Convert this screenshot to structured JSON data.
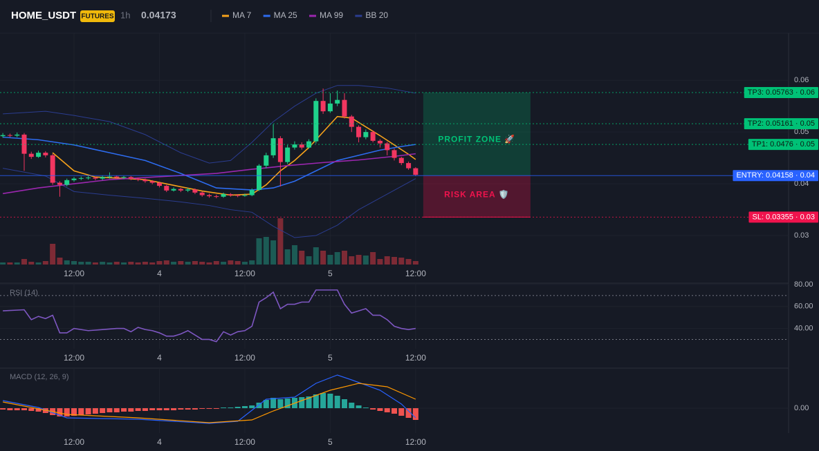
{
  "chart_data": [
    {
      "type": "candlestick",
      "title": "HOME_USDT",
      "badge": "FUTURES",
      "interval": "1h",
      "last_price": 0.04173,
      "last_price_color": "#1fd18b",
      "up_color": "#1fd18b",
      "down_color": "#f23660",
      "volume_up_color": "#1c5b55",
      "volume_down_color": "#7d2a35",
      "xlim": [
        -10.4,
        100.4
      ],
      "xticks": [
        {
          "value": 0,
          "label": "12:00"
        },
        {
          "value": 12,
          "label": "4"
        },
        {
          "value": 24,
          "label": "12:00"
        },
        {
          "value": 36,
          "label": "5"
        },
        {
          "value": 48,
          "label": "12:00"
        }
      ],
      "ylim": [
        0.0244,
        0.0691
      ],
      "yticks": [
        0.03,
        0.04,
        0.05,
        0.06
      ],
      "x": [
        -10,
        -9,
        -8,
        -7,
        -6,
        -5,
        -4,
        -3,
        -2,
        -1,
        0,
        1,
        2,
        3,
        4,
        5,
        6,
        7,
        8,
        9,
        10,
        11,
        12,
        13,
        14,
        15,
        16,
        17,
        18,
        19,
        20,
        21,
        22,
        23,
        24,
        25,
        26,
        27,
        28,
        29,
        30,
        31,
        32,
        33,
        34,
        35,
        36,
        37,
        38,
        39,
        40,
        41,
        42,
        43,
        44,
        45,
        46,
        47,
        48
      ],
      "open": [
        0.0492,
        0.0494,
        0.0493,
        0.0495,
        0.0458,
        0.0452,
        0.046,
        0.0455,
        0.0402,
        0.0398,
        0.0407,
        0.041,
        0.0411,
        0.0412,
        0.041,
        0.0413,
        0.0414,
        0.0412,
        0.0413,
        0.041,
        0.0408,
        0.0405,
        0.0402,
        0.0396,
        0.0387,
        0.039,
        0.0387,
        0.0389,
        0.0383,
        0.0378,
        0.0376,
        0.0375,
        0.038,
        0.0378,
        0.0377,
        0.0378,
        0.0388,
        0.0435,
        0.0455,
        0.0488,
        0.0442,
        0.047,
        0.0476,
        0.047,
        0.0482,
        0.056,
        0.054,
        0.0555,
        0.0562,
        0.053,
        0.051,
        0.049,
        0.05,
        0.0483,
        0.0478,
        0.0465,
        0.045,
        0.044,
        0.043
      ],
      "high": [
        0.0498,
        0.0497,
        0.0499,
        0.0498,
        0.0462,
        0.0464,
        0.0463,
        0.0458,
        0.0405,
        0.041,
        0.0413,
        0.0414,
        0.0415,
        0.0414,
        0.0416,
        0.0422,
        0.0416,
        0.0415,
        0.0415,
        0.0412,
        0.041,
        0.0407,
        0.0404,
        0.0398,
        0.0393,
        0.0392,
        0.0392,
        0.0391,
        0.0385,
        0.0381,
        0.0379,
        0.0383,
        0.0382,
        0.038,
        0.0381,
        0.0391,
        0.0438,
        0.046,
        0.0515,
        0.0492,
        0.0475,
        0.0482,
        0.048,
        0.0486,
        0.0565,
        0.0584,
        0.0575,
        0.058,
        0.0575,
        0.0533,
        0.0513,
        0.0505,
        0.0503,
        0.0486,
        0.0481,
        0.0468,
        0.0452,
        0.0443,
        0.0432
      ],
      "low": [
        0.0489,
        0.049,
        0.049,
        0.0425,
        0.0448,
        0.045,
        0.0451,
        0.0398,
        0.0375,
        0.0395,
        0.0404,
        0.0407,
        0.0408,
        0.0407,
        0.0407,
        0.041,
        0.0409,
        0.0409,
        0.0407,
        0.0405,
        0.0402,
        0.0399,
        0.0393,
        0.0384,
        0.0385,
        0.0384,
        0.0384,
        0.038,
        0.0375,
        0.0373,
        0.0372,
        0.0373,
        0.0375,
        0.0374,
        0.0375,
        0.0376,
        0.0386,
        0.043,
        0.045,
        0.0395,
        0.0438,
        0.0466,
        0.0466,
        0.0468,
        0.0478,
        0.0535,
        0.0537,
        0.055,
        0.0526,
        0.05,
        0.048,
        0.0486,
        0.048,
        0.047,
        0.0455,
        0.0445,
        0.0436,
        0.0427,
        0.0415
      ],
      "close": [
        0.0494,
        0.0493,
        0.0495,
        0.0458,
        0.0452,
        0.046,
        0.0455,
        0.0402,
        0.0398,
        0.0407,
        0.041,
        0.0411,
        0.0412,
        0.041,
        0.0413,
        0.0414,
        0.0412,
        0.0413,
        0.041,
        0.0408,
        0.0405,
        0.0402,
        0.0396,
        0.0387,
        0.039,
        0.0387,
        0.0389,
        0.0383,
        0.0378,
        0.0376,
        0.0375,
        0.038,
        0.0378,
        0.0377,
        0.0378,
        0.0388,
        0.0435,
        0.0455,
        0.0488,
        0.0442,
        0.047,
        0.0476,
        0.047,
        0.0482,
        0.056,
        0.054,
        0.0555,
        0.0562,
        0.053,
        0.051,
        0.049,
        0.05,
        0.0483,
        0.0478,
        0.0465,
        0.045,
        0.044,
        0.043,
        0.04173
      ],
      "volume": [
        3,
        3,
        3,
        8,
        4,
        3,
        5,
        30,
        10,
        6,
        5,
        4,
        4,
        3,
        4,
        3,
        4,
        3,
        4,
        3,
        4,
        3,
        5,
        6,
        4,
        5,
        4,
        5,
        4,
        3,
        5,
        4,
        6,
        5,
        4,
        6,
        38,
        40,
        35,
        67,
        22,
        28,
        20,
        12,
        25,
        20,
        14,
        18,
        20,
        12,
        14,
        13,
        18,
        8,
        12,
        11,
        10,
        8,
        5
      ],
      "series": [
        {
          "name": "MA 7",
          "color": "#f7a21b",
          "x": [
            -3,
            0,
            3,
            6,
            10,
            14,
            18,
            22,
            25,
            27,
            29,
            31,
            33,
            35,
            37,
            39,
            41,
            43,
            45,
            47,
            48
          ],
          "values": [
            0.046,
            0.0425,
            0.0413,
            0.0411,
            0.0408,
            0.0397,
            0.0386,
            0.0378,
            0.038,
            0.0398,
            0.0425,
            0.0445,
            0.047,
            0.05,
            0.053,
            0.0527,
            0.051,
            0.0493,
            0.0475,
            0.0457,
            0.0447
          ]
        },
        {
          "name": "MA 25",
          "color": "#2d6cf0",
          "x": [
            -10,
            -5,
            0,
            5,
            10,
            15,
            20,
            25,
            28,
            31,
            34,
            37,
            40,
            43,
            46,
            48
          ],
          "values": [
            0.049,
            0.0485,
            0.0475,
            0.046,
            0.0445,
            0.042,
            0.0392,
            0.0388,
            0.0392,
            0.0405,
            0.0425,
            0.0445,
            0.0455,
            0.0465,
            0.0472,
            0.0476
          ]
        },
        {
          "name": "MA 99",
          "color": "#9c27b0",
          "x": [
            -10,
            -5,
            0,
            5,
            10,
            15,
            20,
            25,
            30,
            35,
            40,
            45,
            48
          ],
          "values": [
            0.0381,
            0.0392,
            0.04,
            0.0408,
            0.0412,
            0.0416,
            0.042,
            0.0428,
            0.0435,
            0.0441,
            0.0446,
            0.0453,
            0.0458
          ]
        }
      ],
      "bands": [
        {
          "name": "BB 20",
          "color": "#2b3d91",
          "x": [
            -10,
            -4,
            0,
            5,
            10,
            15,
            19,
            22,
            25,
            28,
            31,
            34,
            37,
            40,
            44,
            48
          ],
          "upper": [
            0.0535,
            0.054,
            0.0532,
            0.052,
            0.0495,
            0.046,
            0.044,
            0.0445,
            0.048,
            0.052,
            0.055,
            0.0575,
            0.059,
            0.059,
            0.0585,
            0.0575
          ],
          "lower": [
            0.043,
            0.0415,
            0.0385,
            0.0378,
            0.0372,
            0.0365,
            0.0358,
            0.035,
            0.0345,
            0.0318,
            0.0296,
            0.03,
            0.032,
            0.035,
            0.038,
            0.041
          ]
        }
      ],
      "levels": {
        "tp": [
          {
            "value": 0.05763,
            "value_label": "TP3: 0.05763 · 0.06",
            "color": "#00c176"
          },
          {
            "value": 0.05161,
            "value_label": "TP2: 0.05161 · 0.05",
            "color": "#00c176"
          },
          {
            "value": 0.0476,
            "value_label": "TP1: 0.0476 · 0.05",
            "color": "#00c176"
          }
        ],
        "entry": {
          "value": 0.04158,
          "value_label": "ENTRY: 0.04158 · 0.04",
          "color": "#2962ff"
        },
        "sl": {
          "value": 0.03355,
          "value_label": "SL: 0.03355 · 0.03",
          "color": "#f0134d"
        }
      },
      "profit_zone": {
        "label": "PROFIT ZONE 🚀",
        "color": "#00c176"
      },
      "risk_zone": {
        "label": "RISK AREA 🛡️",
        "color": "#f0134d"
      }
    },
    {
      "type": "line",
      "title": "RSI (14)",
      "color": "#7e57c2",
      "xlim": [
        -10.4,
        100.4
      ],
      "xticks": [
        {
          "value": 0,
          "label": "12:00"
        },
        {
          "value": 12,
          "label": "4"
        },
        {
          "value": 24,
          "label": "12:00"
        },
        {
          "value": 36,
          "label": "5"
        },
        {
          "value": 48,
          "label": "12:00"
        }
      ],
      "ylim": [
        21.5,
        81.2
      ],
      "yticks": [
        {
          "value": 80,
          "label": "80.00"
        },
        {
          "value": 60,
          "label": "60.00"
        },
        {
          "value": 40,
          "label": "40.00"
        }
      ],
      "levels": [
        70,
        30
      ],
      "x": [
        -10,
        -7,
        -6,
        -5,
        -4,
        -3,
        -2,
        -1,
        0,
        2,
        4,
        6,
        7,
        8,
        9,
        10,
        11,
        12,
        13,
        14,
        15,
        16,
        17,
        18,
        19,
        20,
        21,
        22,
        23,
        24,
        25,
        26,
        27,
        28,
        29,
        30,
        31,
        32,
        33,
        34,
        35,
        36,
        37,
        38,
        39,
        40,
        41,
        42,
        43,
        44,
        45,
        46,
        47,
        48
      ],
      "values": [
        56,
        57,
        48,
        51,
        49,
        52,
        36,
        36,
        40,
        38,
        39,
        40,
        40,
        37,
        41,
        39,
        38,
        36,
        33,
        33,
        35,
        38,
        34,
        30,
        30,
        28,
        37,
        34,
        37,
        38,
        42,
        64,
        68,
        73,
        58,
        62,
        62,
        64,
        64,
        75,
        75,
        75,
        75,
        62,
        54,
        56,
        58,
        52,
        52,
        48,
        42,
        40,
        39,
        40
      ]
    },
    {
      "type": "macd",
      "title": "MACD (12, 26, 9)",
      "up_color": "#26a69a",
      "down_color": "#ef5350",
      "xlim": [
        -10.4,
        100.4
      ],
      "xticks": [
        {
          "value": 0,
          "label": "12:00"
        },
        {
          "value": 12,
          "label": "4"
        },
        {
          "value": 24,
          "label": "12:00"
        },
        {
          "value": 36,
          "label": "5"
        },
        {
          "value": 48,
          "label": "12:00"
        }
      ],
      "ylim": [
        -0.0036,
        0.0058
      ],
      "yticks": [
        {
          "value": 0,
          "label": "0.00"
        }
      ],
      "x": [
        -10,
        -9,
        -8,
        -7,
        -6,
        -5,
        -4,
        -3,
        -2,
        -1,
        0,
        1,
        2,
        3,
        4,
        5,
        6,
        7,
        8,
        9,
        10,
        11,
        12,
        13,
        14,
        15,
        16,
        17,
        18,
        19,
        20,
        21,
        22,
        23,
        24,
        25,
        26,
        27,
        28,
        29,
        30,
        31,
        32,
        33,
        34,
        35,
        36,
        37,
        38,
        39,
        40,
        41,
        42,
        43,
        44,
        45,
        46,
        47,
        48
      ],
      "histogram": [
        -0.0002,
        -0.0003,
        -0.0003,
        -0.0003,
        -0.0004,
        -0.0005,
        -0.0007,
        -0.001,
        -0.0012,
        -0.0012,
        -0.0011,
        -0.001,
        -0.0009,
        -0.0008,
        -0.0007,
        -0.0006,
        -0.0006,
        -0.0005,
        -0.0005,
        -0.0004,
        -0.0004,
        -0.0003,
        -0.0003,
        -0.0003,
        -0.0003,
        -0.0002,
        -0.0002,
        -0.0002,
        -0.0001,
        -0.0001,
        -0.0001,
        0.0001,
        0.0001,
        0.0002,
        0.0003,
        0.0004,
        0.0008,
        0.0012,
        0.0015,
        0.0013,
        0.0014,
        0.0015,
        0.0016,
        0.0017,
        0.002,
        0.0022,
        0.0021,
        0.0018,
        0.0013,
        0.0008,
        0.0004,
        0.0001,
        -0.0002,
        -0.0004,
        -0.0006,
        -0.0008,
        -0.0011,
        -0.0014,
        -0.0017
      ],
      "lines": [
        {
          "color": "#2962ff",
          "x": [
            -10,
            -5,
            -1,
            9,
            19,
            23,
            27,
            31,
            34,
            37,
            39,
            43,
            46,
            48
          ],
          "values": [
            0.0011,
            0.0001,
            -0.0014,
            -0.0016,
            -0.0022,
            -0.0019,
            0.0013,
            0.0016,
            0.0036,
            0.0048,
            0.0041,
            0.0026,
            0.0006,
            -0.0014
          ]
        },
        {
          "color": "#ff9800",
          "x": [
            -10,
            -1,
            9,
            19,
            25,
            28,
            32,
            36,
            40,
            44,
            48
          ],
          "values": [
            0.0009,
            -0.0009,
            -0.0014,
            -0.0021,
            -0.0017,
            -0.0004,
            0.0011,
            0.0026,
            0.0036,
            0.0031,
            0.0013
          ]
        }
      ]
    }
  ]
}
